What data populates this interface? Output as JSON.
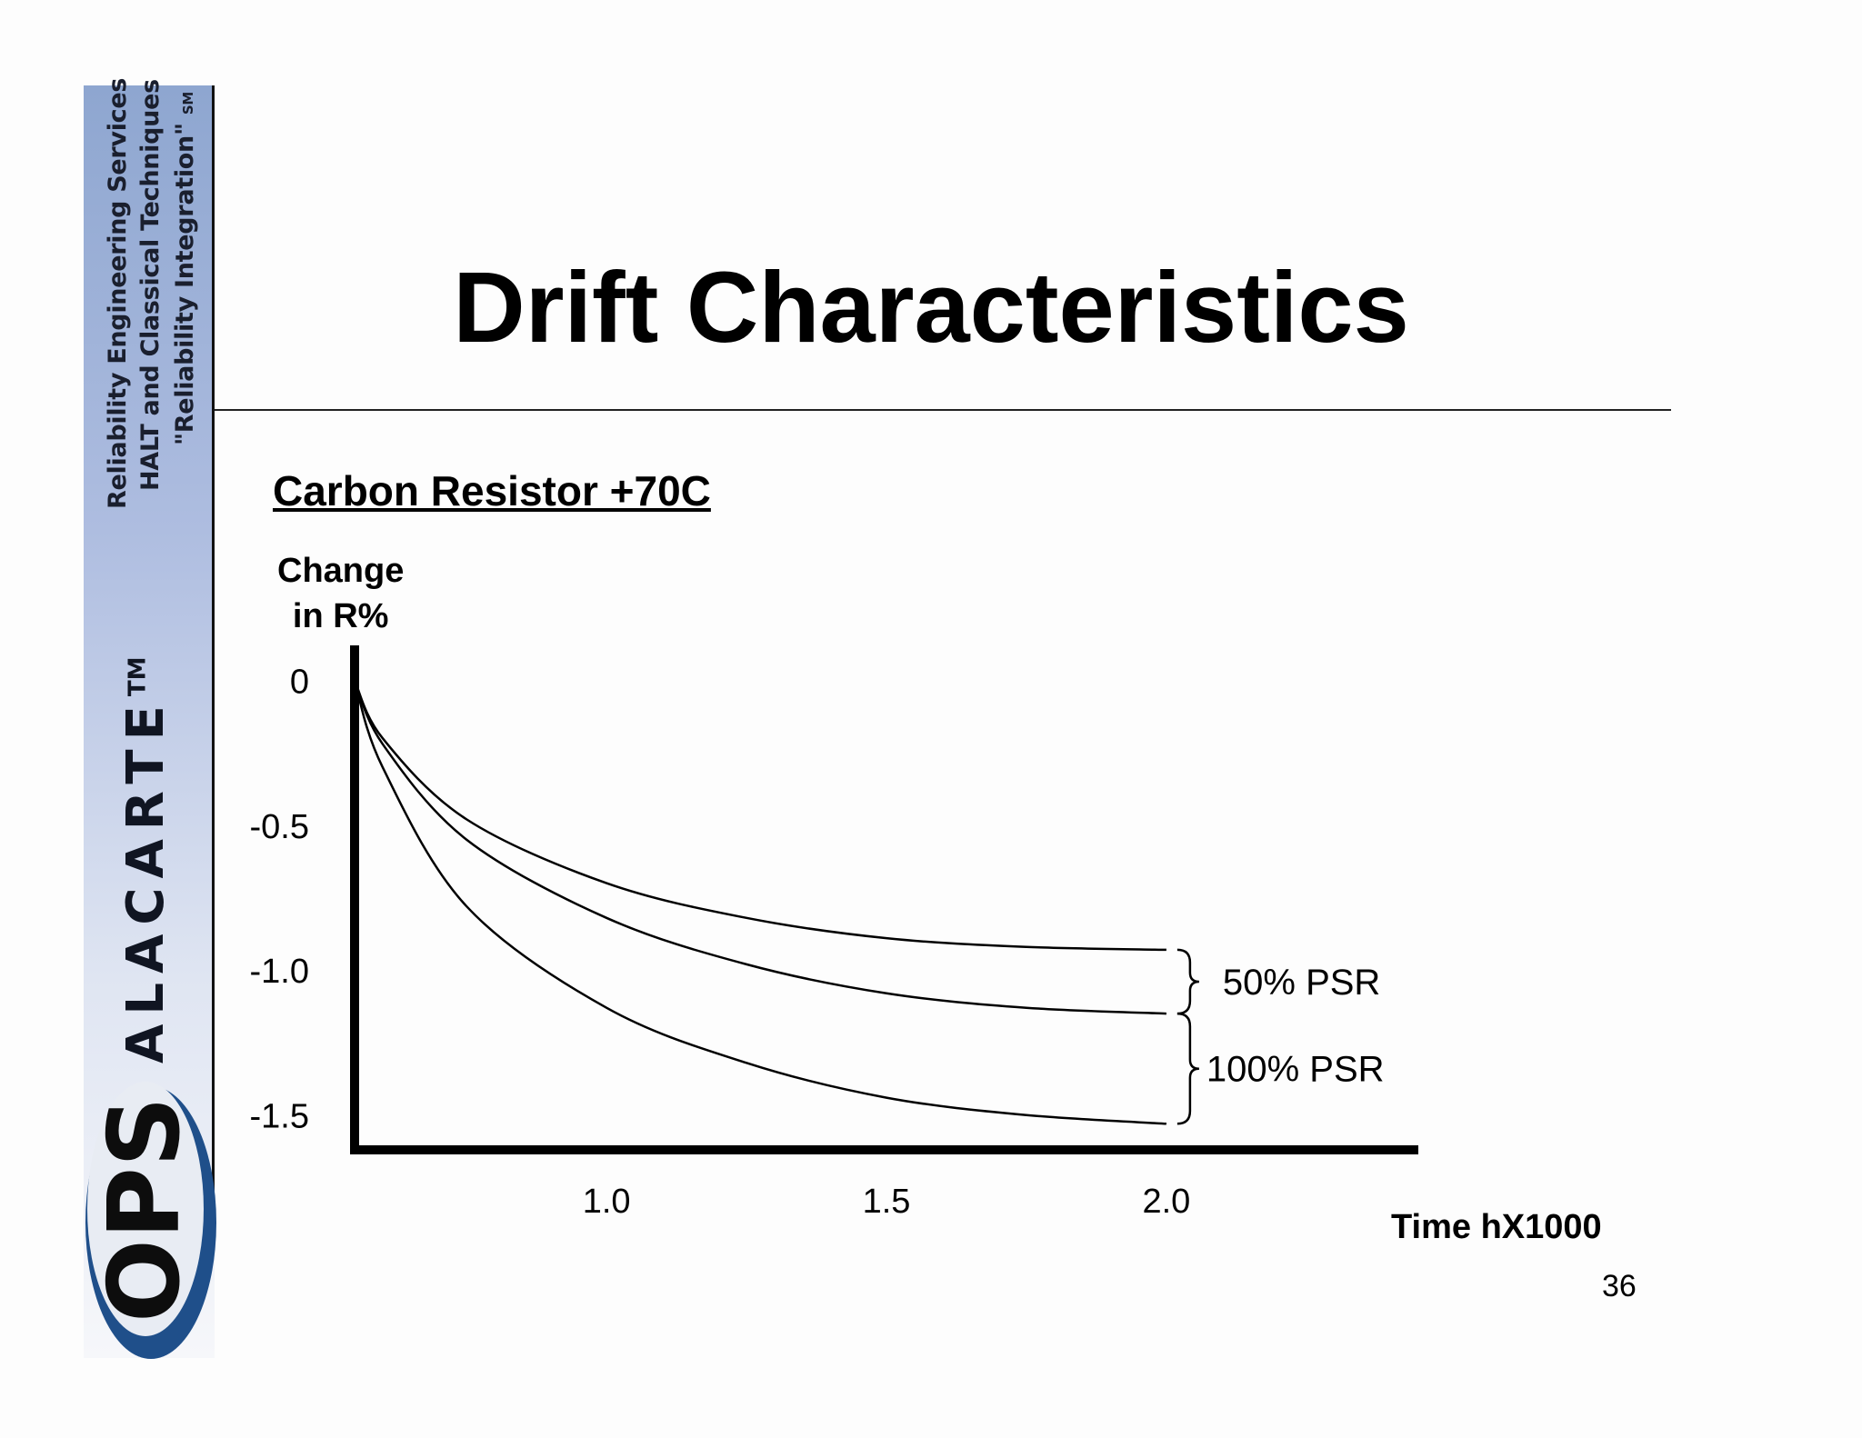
{
  "sidebar": {
    "tagline_1": "Reliability Engineering Services",
    "tagline_2": "HALT and Classical Techniques",
    "tagline_3": "\"Reliability Integration\"",
    "tagline_mark": "SM",
    "brand": "ALACARTE",
    "brand_mark": "TM",
    "logo_text": "OPS",
    "colors": {
      "gradient_top": "#8ea6d0",
      "logo_blue": "#1f4f8a",
      "logo_dark": "#0d0d0d"
    }
  },
  "slide": {
    "title": "Drift Characteristics",
    "subtitle": "Carbon Resistor +70C",
    "page_number": "36"
  },
  "chart_data": {
    "type": "line",
    "title": "Carbon Resistor +70C",
    "ylabel_line1": "Change",
    "ylabel_line2": "in R%",
    "xlabel": "Time hX1000",
    "x_ticks": [
      "1.0",
      "1.5",
      "2.0"
    ],
    "y_ticks": [
      "0",
      "-0.5",
      "-1.0",
      "-1.5"
    ],
    "xlim": [
      0.55,
      2.45
    ],
    "ylim": [
      -1.62,
      0.12
    ],
    "series": [
      {
        "x": [
          0.55,
          0.6,
          0.75,
          1.0,
          1.25,
          1.5,
          1.75,
          2.0
        ],
        "y": [
          0.0,
          -0.2,
          -0.48,
          -0.7,
          -0.82,
          -0.89,
          -0.92,
          -0.93
        ]
      },
      {
        "x": [
          0.55,
          0.6,
          0.75,
          1.0,
          1.25,
          1.5,
          1.75,
          2.0
        ],
        "y": [
          0.0,
          -0.22,
          -0.55,
          -0.82,
          -0.98,
          -1.08,
          -1.13,
          -1.15
        ]
      },
      {
        "x": [
          0.55,
          0.6,
          0.75,
          1.0,
          1.25,
          1.5,
          1.75,
          2.0
        ],
        "y": [
          0.0,
          -0.3,
          -0.78,
          -1.13,
          -1.32,
          -1.44,
          -1.5,
          -1.53
        ]
      }
    ],
    "annotations": [
      "50% PSR",
      "100% PSR"
    ],
    "grid": false
  }
}
